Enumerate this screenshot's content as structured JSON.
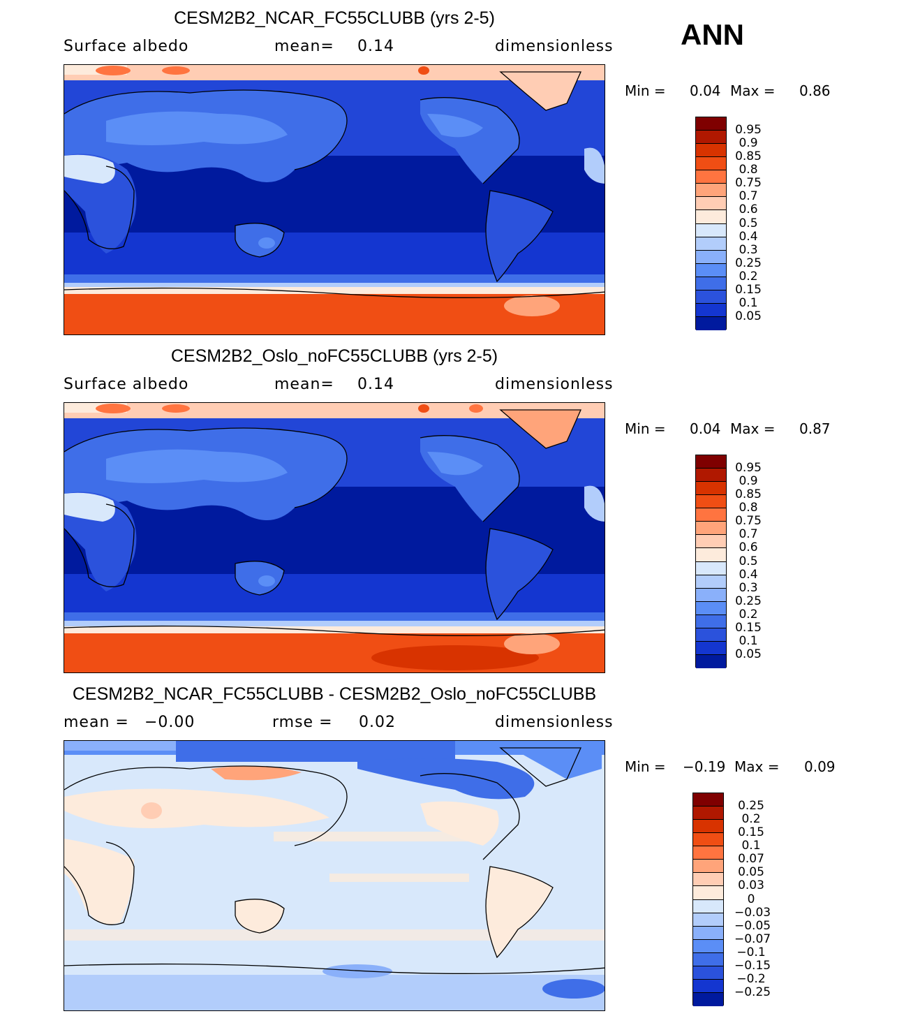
{
  "season": "ANN",
  "panels": [
    {
      "title": "CESM2B2_NCAR_FC55CLUBB (yrs 2-5)",
      "left_label": "Surface albedo",
      "mid_label": "mean=",
      "mid_value": "0.14",
      "units": "dimensionless",
      "min_label": "Min =",
      "min_value": "0.04",
      "max_label": "Max =",
      "max_value": "0.86",
      "colorbar_labels": [
        "0.95",
        "0.9",
        "0.85",
        "0.8",
        "0.75",
        "0.7",
        "0.6",
        "0.5",
        "0.4",
        "0.3",
        "0.25",
        "0.2",
        "0.15",
        "0.1",
        "0.05"
      ]
    },
    {
      "title": "CESM2B2_Oslo_noFC55CLUBB (yrs 2-5)",
      "left_label": "Surface albedo",
      "mid_label": "mean=",
      "mid_value": "0.14",
      "units": "dimensionless",
      "min_label": "Min =",
      "min_value": "0.04",
      "max_label": "Max =",
      "max_value": "0.87",
      "colorbar_labels": [
        "0.95",
        "0.9",
        "0.85",
        "0.8",
        "0.75",
        "0.7",
        "0.6",
        "0.5",
        "0.4",
        "0.3",
        "0.25",
        "0.2",
        "0.15",
        "0.1",
        "0.05"
      ]
    },
    {
      "title": "CESM2B2_NCAR_FC55CLUBB - CESM2B2_Oslo_noFC55CLUBB",
      "left_label": "mean =",
      "left_value": "−0.00",
      "mid_label": "rmse =",
      "mid_value": "0.02",
      "units": "dimensionless",
      "min_label": "Min =",
      "min_value": "−0.19",
      "max_label": "Max =",
      "max_value": "0.09",
      "colorbar_labels": [
        "0.25",
        "0.2",
        "0.15",
        "0.1",
        "0.07",
        "0.05",
        "0.03",
        "0",
        "−0.03",
        "−0.05",
        "−0.07",
        "−0.1",
        "−0.15",
        "−0.2",
        "−0.25"
      ]
    }
  ],
  "colors": {
    "abs_scale": [
      "#7f0000",
      "#b01800",
      "#d83300",
      "#f04e14",
      "#ff7440",
      "#ffa47a",
      "#ffcdb4",
      "#fdebdc",
      "#d8e8fb",
      "#b2cdfb",
      "#8ab0fa",
      "#5b8ef6",
      "#3f6ee8",
      "#2b52dc",
      "#1436d0",
      "#001a9e"
    ],
    "diff_scale": [
      "#7f0000",
      "#b01800",
      "#d83300",
      "#f04e14",
      "#ff7440",
      "#ffa47a",
      "#ffcdb4",
      "#fdebdc",
      "#d8e8fb",
      "#b2cdfb",
      "#8ab0fa",
      "#5b8ef6",
      "#3f6ee8",
      "#2b52dc",
      "#1436d0",
      "#001a9e"
    ]
  }
}
